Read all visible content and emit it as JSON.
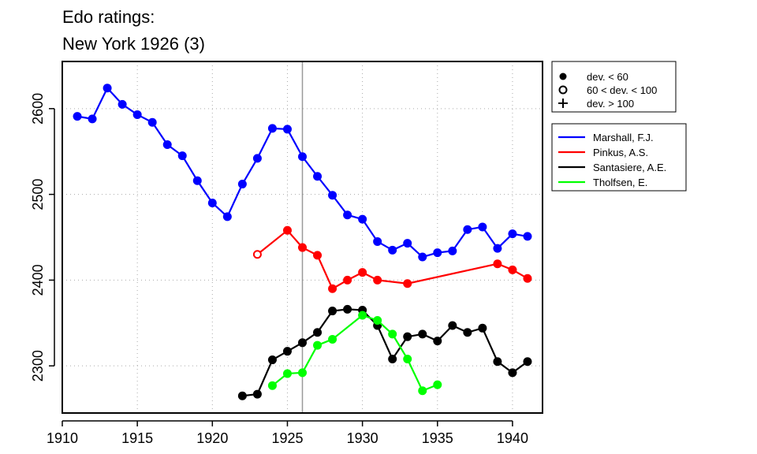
{
  "chart_data": {
    "type": "line",
    "title_lines": [
      "Edo ratings:",
      "New York 1926 (3)"
    ],
    "xlim": [
      1910,
      1942
    ],
    "ylim": [
      2245,
      2655
    ],
    "x_ticks": [
      1910,
      1915,
      1920,
      1925,
      1930,
      1935,
      1940
    ],
    "y_ticks": [
      2300,
      2400,
      2500,
      2600
    ],
    "grid": true,
    "reference_line_x": 1926,
    "legend_symbols": [
      {
        "marker": "filled-circle",
        "label": "dev. < 60"
      },
      {
        "marker": "open-circle",
        "label": "60 < dev. < 100"
      },
      {
        "marker": "plus",
        "label": "dev. > 100"
      }
    ],
    "series": [
      {
        "name": "Marshall, F.J.",
        "color": "#0000ff",
        "points": [
          {
            "x": 1911,
            "y": 2591
          },
          {
            "x": 1912,
            "y": 2588
          },
          {
            "x": 1913,
            "y": 2624
          },
          {
            "x": 1914,
            "y": 2605
          },
          {
            "x": 1915,
            "y": 2593
          },
          {
            "x": 1916,
            "y": 2584
          },
          {
            "x": 1917,
            "y": 2558
          },
          {
            "x": 1918,
            "y": 2545
          },
          {
            "x": 1919,
            "y": 2516
          },
          {
            "x": 1920,
            "y": 2490
          },
          {
            "x": 1921,
            "y": 2474
          },
          {
            "x": 1922,
            "y": 2512
          },
          {
            "x": 1923,
            "y": 2542
          },
          {
            "x": 1924,
            "y": 2577
          },
          {
            "x": 1925,
            "y": 2576
          },
          {
            "x": 1926,
            "y": 2544
          },
          {
            "x": 1927,
            "y": 2521
          },
          {
            "x": 1928,
            "y": 2499
          },
          {
            "x": 1929,
            "y": 2476
          },
          {
            "x": 1930,
            "y": 2471
          },
          {
            "x": 1931,
            "y": 2445
          },
          {
            "x": 1932,
            "y": 2435
          },
          {
            "x": 1933,
            "y": 2443
          },
          {
            "x": 1934,
            "y": 2427
          },
          {
            "x": 1935,
            "y": 2432
          },
          {
            "x": 1936,
            "y": 2434
          },
          {
            "x": 1937,
            "y": 2459
          },
          {
            "x": 1938,
            "y": 2462
          },
          {
            "x": 1939,
            "y": 2437
          },
          {
            "x": 1940,
            "y": 2454
          },
          {
            "x": 1941,
            "y": 2451
          }
        ]
      },
      {
        "name": "Pinkus, A.S.",
        "color": "#ff0000",
        "points": [
          {
            "x": 1923,
            "y": 2430,
            "open": true
          },
          {
            "x": 1925,
            "y": 2458
          },
          {
            "x": 1926,
            "y": 2438
          },
          {
            "x": 1927,
            "y": 2429
          },
          {
            "x": 1928,
            "y": 2390
          },
          {
            "x": 1929,
            "y": 2400
          },
          {
            "x": 1930,
            "y": 2409
          },
          {
            "x": 1931,
            "y": 2400
          },
          {
            "x": 1933,
            "y": 2396
          },
          {
            "x": 1939,
            "y": 2419
          },
          {
            "x": 1940,
            "y": 2412
          },
          {
            "x": 1941,
            "y": 2402
          }
        ]
      },
      {
        "name": "Santasiere, A.E.",
        "color": "#000000",
        "points": [
          {
            "x": 1922,
            "y": 2265
          },
          {
            "x": 1923,
            "y": 2267
          },
          {
            "x": 1924,
            "y": 2307
          },
          {
            "x": 1925,
            "y": 2317
          },
          {
            "x": 1926,
            "y": 2327
          },
          {
            "x": 1927,
            "y": 2339
          },
          {
            "x": 1928,
            "y": 2364
          },
          {
            "x": 1929,
            "y": 2366
          },
          {
            "x": 1930,
            "y": 2365
          },
          {
            "x": 1931,
            "y": 2347
          },
          {
            "x": 1932,
            "y": 2308
          },
          {
            "x": 1933,
            "y": 2334
          },
          {
            "x": 1934,
            "y": 2337
          },
          {
            "x": 1935,
            "y": 2329
          },
          {
            "x": 1936,
            "y": 2347
          },
          {
            "x": 1937,
            "y": 2339
          },
          {
            "x": 1938,
            "y": 2344
          },
          {
            "x": 1939,
            "y": 2305
          },
          {
            "x": 1940,
            "y": 2292
          },
          {
            "x": 1941,
            "y": 2305
          }
        ]
      },
      {
        "name": "Tholfsen, E.",
        "color": "#00ff00",
        "points": [
          {
            "x": 1924,
            "y": 2277
          },
          {
            "x": 1925,
            "y": 2291
          },
          {
            "x": 1926,
            "y": 2292
          },
          {
            "x": 1927,
            "y": 2324
          },
          {
            "x": 1928,
            "y": 2331
          },
          {
            "x": 1930,
            "y": 2359
          },
          {
            "x": 1931,
            "y": 2353
          },
          {
            "x": 1932,
            "y": 2337
          },
          {
            "x": 1933,
            "y": 2308
          },
          {
            "x": 1934,
            "y": 2271
          },
          {
            "x": 1935,
            "y": 2278
          }
        ]
      }
    ]
  }
}
